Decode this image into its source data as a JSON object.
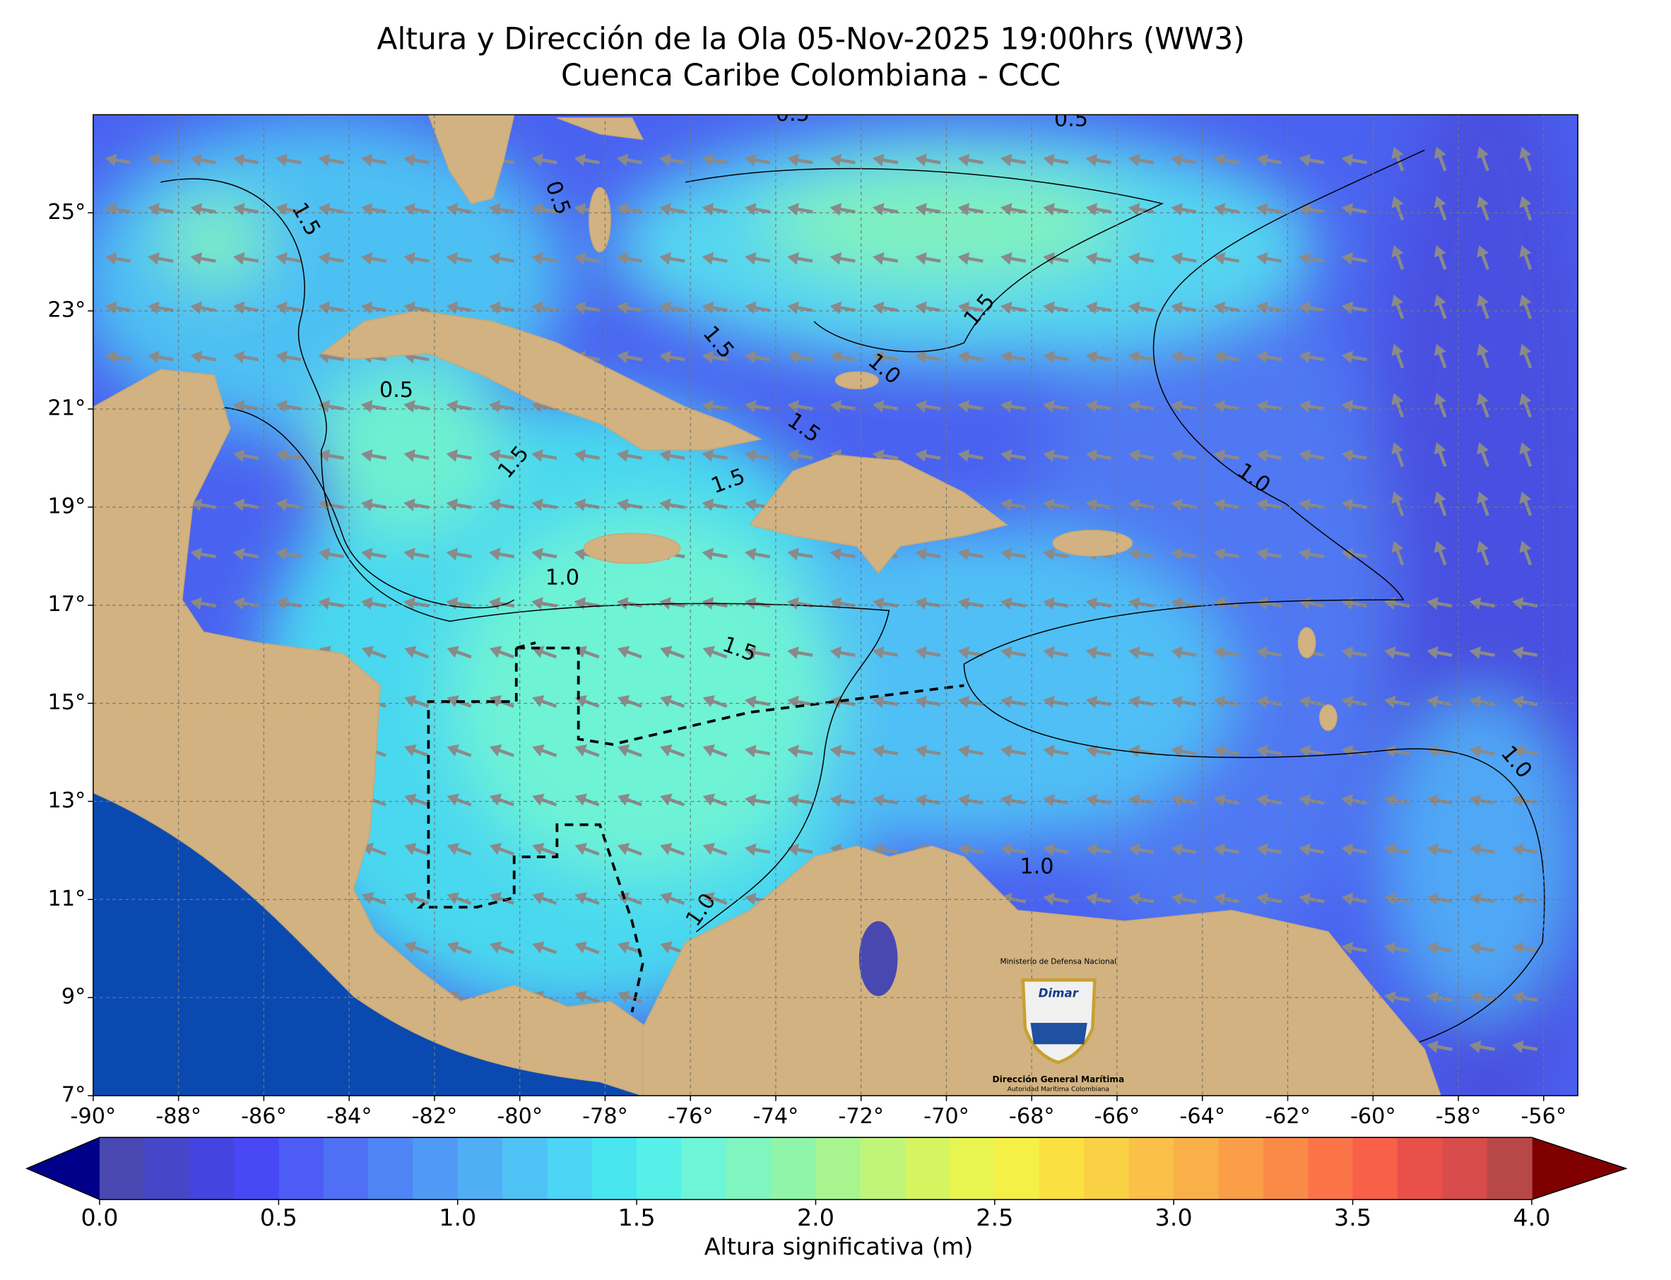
{
  "chart_data": {
    "type": "map",
    "title": "Altura y Dirección de la Ola 05-Nov-2025 19:00hrs (WW3)",
    "subtitle": "Cuenca Caribe Colombiana - CCC",
    "xlim": [
      -90,
      -55.2
    ],
    "ylim": [
      7,
      27
    ],
    "xticks": [
      {
        "value": -90,
        "label": "-90°"
      },
      {
        "value": -88,
        "label": "-88°"
      },
      {
        "value": -86,
        "label": "-86°"
      },
      {
        "value": -84,
        "label": "-84°"
      },
      {
        "value": -82,
        "label": "-82°"
      },
      {
        "value": -80,
        "label": "-80°"
      },
      {
        "value": -78,
        "label": "-78°"
      },
      {
        "value": -76,
        "label": "-76°"
      },
      {
        "value": -74,
        "label": "-74°"
      },
      {
        "value": -72,
        "label": "-72°"
      },
      {
        "value": -70,
        "label": "-70°"
      },
      {
        "value": -68,
        "label": "-68°"
      },
      {
        "value": -66,
        "label": "-66°"
      },
      {
        "value": -64,
        "label": "-64°"
      },
      {
        "value": -62,
        "label": "-62°"
      },
      {
        "value": -60,
        "label": "-60°"
      },
      {
        "value": -58,
        "label": "-58°"
      },
      {
        "value": -56,
        "label": "-56°"
      }
    ],
    "yticks": [
      {
        "value": 7,
        "label": "7°"
      },
      {
        "value": 9,
        "label": "9°"
      },
      {
        "value": 11,
        "label": "11°"
      },
      {
        "value": 13,
        "label": "13°"
      },
      {
        "value": 15,
        "label": "15°"
      },
      {
        "value": 17,
        "label": "17°"
      },
      {
        "value": 19,
        "label": "19°"
      },
      {
        "value": 21,
        "label": "21°"
      },
      {
        "value": 23,
        "label": "23°"
      },
      {
        "value": 25,
        "label": "25°"
      }
    ],
    "grid": true,
    "contour_labels": [
      "1.5",
      "1.5",
      "0.5",
      "1.5",
      "1.0",
      "0.5",
      "1.5",
      "1.5",
      "1.5",
      "1.0",
      "1.0",
      "1.5",
      "1.0",
      "1.0",
      "1.0",
      "0.5",
      "0.5"
    ],
    "colorbar": {
      "label": "Altura significativa (m)",
      "clim": [
        0,
        4
      ],
      "colors": [
        "#4848b0",
        "#4646c8",
        "#4444e0",
        "#4848f5",
        "#4d5cf5",
        "#4f70f5",
        "#5085f5",
        "#509af5",
        "#50aef5",
        "#4ec2f5",
        "#4cd5f5",
        "#4ae6f0",
        "#56f0e8",
        "#6ef5d8",
        "#80f5c0",
        "#90f5a8",
        "#a8f590",
        "#c0f57a",
        "#d5f560",
        "#e8f550",
        "#f5f045",
        "#fae040",
        "#fad045",
        "#fac048",
        "#fab048",
        "#fa9e48",
        "#fa8a48",
        "#fa7448",
        "#f86048",
        "#e85048",
        "#d84c4c",
        "#b84848"
      ],
      "under_color": "#00008b",
      "over_color": "#800000",
      "ticks": [
        {
          "value": 0,
          "label": "0.0"
        },
        {
          "value": 0.5,
          "label": "0.5"
        },
        {
          "value": 1,
          "label": "1.0"
        },
        {
          "value": 1.5,
          "label": "1.5"
        },
        {
          "value": 2,
          "label": "2.0"
        },
        {
          "value": 2.5,
          "label": "2.5"
        },
        {
          "value": 3,
          "label": "3.0"
        },
        {
          "value": 3.5,
          "label": "3.5"
        },
        {
          "value": 4,
          "label": "4.0"
        }
      ]
    }
  },
  "logo": {
    "ministry": "Ministerio de Defensa Nacional",
    "brand": "Dimar",
    "agency": "Dirección General Marítima",
    "tagline": "Autoridad Marítima Colombiana"
  }
}
